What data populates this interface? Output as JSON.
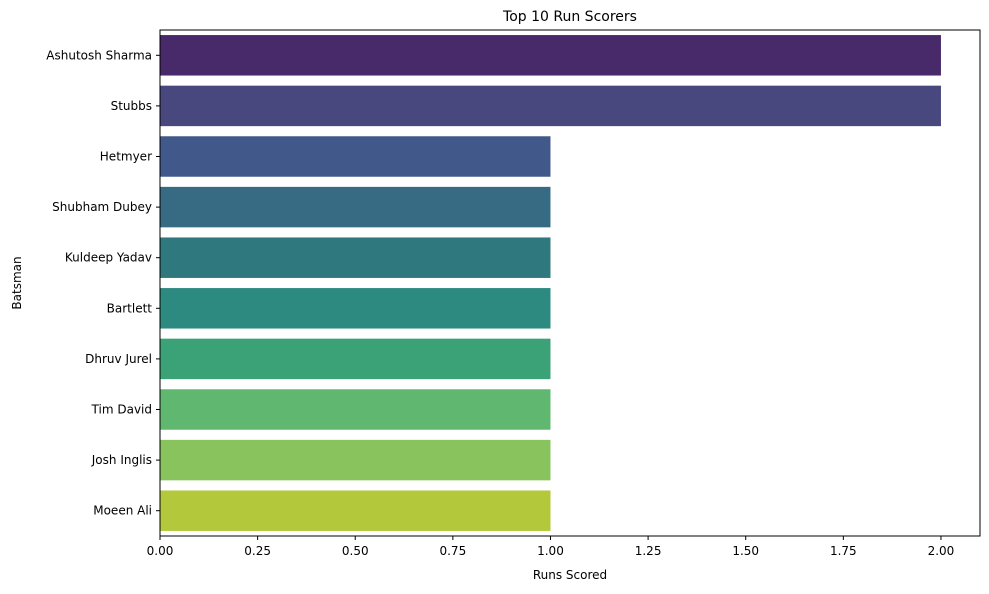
{
  "chart_data": {
    "type": "bar",
    "orientation": "horizontal",
    "title": "Top 10 Run Scorers",
    "xlabel": "Runs Scored",
    "ylabel": "Batsman",
    "categories": [
      "Ashutosh Sharma",
      "Stubbs",
      "Hetmyer",
      "Shubham Dubey",
      "Kuldeep Yadav",
      "Bartlett",
      "Dhruv Jurel",
      "Tim David",
      "Josh Inglis",
      "Moeen Ali"
    ],
    "values": [
      2,
      2,
      1,
      1,
      1,
      1,
      1,
      1,
      1,
      1
    ],
    "colors": [
      "#482a6a",
      "#48487e",
      "#40598a",
      "#366b83",
      "#2e787e",
      "#2d8a80",
      "#3ba277",
      "#60b870",
      "#89c35d",
      "#b3c83b"
    ],
    "xlim": [
      0,
      2.1
    ],
    "xticks": [
      0,
      0.25,
      0.5,
      0.75,
      1.0,
      1.25,
      1.5,
      1.75,
      2.0
    ],
    "xtick_labels": [
      "0.00",
      "0.25",
      "0.50",
      "0.75",
      "1.00",
      "1.25",
      "1.50",
      "1.75",
      "2.00"
    ],
    "grid": false,
    "legend": "none"
  }
}
